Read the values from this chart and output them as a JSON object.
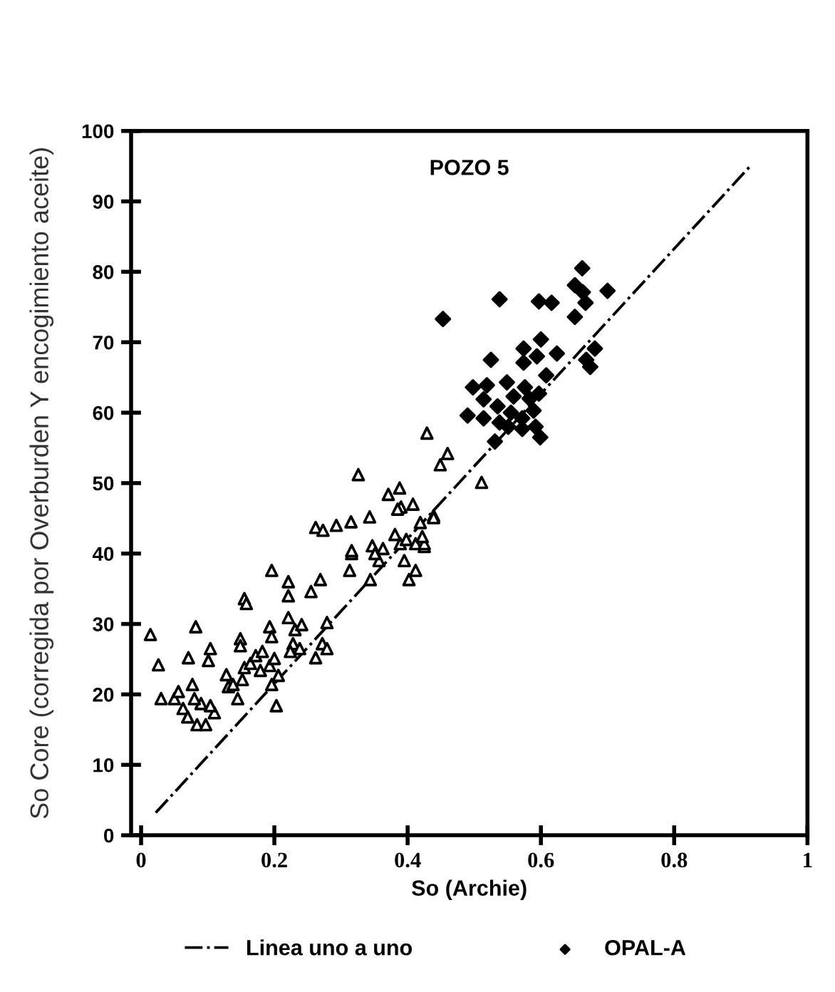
{
  "chart_data": {
    "type": "scatter",
    "title": "POZO 5",
    "xlabel": "So (Archie)",
    "ylabel": "So Core (corregida por Overburden Y encogimiento aceite)",
    "xlim": [
      -0.015,
      1
    ],
    "xticks": [
      0,
      0.2,
      0.4,
      0.6,
      0.8,
      1
    ],
    "ylim": [
      0,
      100
    ],
    "yticks": [
      0,
      10,
      20,
      30,
      40,
      50,
      60,
      70,
      80,
      90,
      100
    ],
    "grid": false,
    "legend": "bottom",
    "series": [
      {
        "type": "line",
        "name": "Linea uno a uno",
        "color": "#000000",
        "line_style": "dashdot",
        "marker": "none",
        "x": [
          0.022,
          0.914
        ],
        "values": [
          3.2,
          95.0
        ]
      },
      {
        "color": "#000000",
        "marker": "triangle",
        "x": [
          0.014,
          0.026,
          0.082,
          0.071,
          0.104,
          0.101,
          0.03,
          0.05,
          0.077,
          0.063,
          0.084,
          0.097,
          0.07,
          0.11,
          0.09,
          0.104,
          0.056,
          0.08,
          0.128,
          0.131,
          0.145,
          0.149,
          0.149,
          0.155,
          0.158,
          0.138,
          0.152,
          0.155,
          0.164,
          0.172,
          0.182,
          0.179,
          0.193,
          0.2,
          0.206,
          0.196,
          0.193,
          0.196,
          0.203,
          0.196,
          0.221,
          0.221,
          0.221,
          0.231,
          0.241,
          0.228,
          0.238,
          0.224,
          0.255,
          0.269,
          0.262,
          0.272,
          0.279,
          0.279,
          0.316,
          0.313,
          0.344,
          0.357,
          0.363,
          0.395,
          0.389,
          0.412,
          0.402,
          0.425,
          0.326,
          0.429,
          0.449,
          0.262,
          0.273,
          0.293,
          0.315,
          0.343,
          0.388,
          0.371,
          0.39,
          0.408,
          0.385,
          0.419,
          0.439,
          0.381,
          0.398,
          0.412,
          0.425,
          0.347,
          0.316,
          0.351,
          0.422,
          0.46,
          0.511,
          0.439
        ],
        "values": [
          28.5,
          24.2,
          29.6,
          25.2,
          26.5,
          24.8,
          19.4,
          19.4,
          21.4,
          18.0,
          15.7,
          15.7,
          16.8,
          17.4,
          18.7,
          18.4,
          20.4,
          19.4,
          22.8,
          21.1,
          19.4,
          27.9,
          26.9,
          33.6,
          32.9,
          21.4,
          22.1,
          23.8,
          24.4,
          25.5,
          26.1,
          23.4,
          24.1,
          25.1,
          22.7,
          21.4,
          29.6,
          28.2,
          18.4,
          37.6,
          36.0,
          34.0,
          30.9,
          29.2,
          29.9,
          27.2,
          26.5,
          26.1,
          34.6,
          36.3,
          25.2,
          27.2,
          30.2,
          26.5,
          40.0,
          37.6,
          36.3,
          39.0,
          40.7,
          39.0,
          41.4,
          37.6,
          36.3,
          41.0,
          51.2,
          57.1,
          52.6,
          43.7,
          43.3,
          44.0,
          44.5,
          45.2,
          49.3,
          48.4,
          46.6,
          47.0,
          46.3,
          44.4,
          45.4,
          42.7,
          42.0,
          41.4,
          41.4,
          41.1,
          40.4,
          40.0,
          42.4,
          54.2,
          50.1,
          45.1
        ]
      },
      {
        "name": "OPAL-A",
        "color": "#000000",
        "marker": "diamond",
        "x": [
          0.453,
          0.538,
          0.597,
          0.616,
          0.662,
          0.651,
          0.663,
          0.667,
          0.651,
          0.7,
          0.6,
          0.574,
          0.594,
          0.624,
          0.681,
          0.668,
          0.674,
          0.525,
          0.574,
          0.608,
          0.498,
          0.519,
          0.549,
          0.576,
          0.597,
          0.559,
          0.583,
          0.49,
          0.514,
          0.514,
          0.535,
          0.538,
          0.555,
          0.572,
          0.589,
          0.551,
          0.572,
          0.592,
          0.599,
          0.531
        ],
        "values": [
          73.3,
          76.1,
          75.8,
          75.6,
          80.5,
          78.1,
          77.1,
          75.6,
          73.6,
          77.3,
          70.4,
          69.1,
          68.0,
          68.4,
          69.1,
          67.5,
          66.5,
          67.5,
          67.1,
          65.3,
          63.6,
          63.9,
          64.3,
          63.6,
          62.7,
          62.3,
          62.0,
          59.6,
          59.2,
          61.9,
          60.9,
          58.6,
          60.0,
          59.2,
          60.3,
          58.0,
          57.7,
          58.0,
          56.5,
          55.9
        ]
      }
    ]
  }
}
